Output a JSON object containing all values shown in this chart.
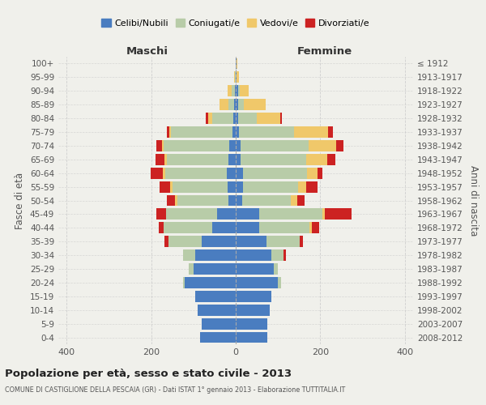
{
  "age_groups": [
    "0-4",
    "5-9",
    "10-14",
    "15-19",
    "20-24",
    "25-29",
    "30-34",
    "35-39",
    "40-44",
    "45-49",
    "50-54",
    "55-59",
    "60-64",
    "65-69",
    "70-74",
    "75-79",
    "80-84",
    "85-89",
    "90-94",
    "95-99",
    "100+"
  ],
  "birth_years": [
    "2008-2012",
    "2003-2007",
    "1998-2002",
    "1993-1997",
    "1988-1992",
    "1983-1987",
    "1978-1982",
    "1973-1977",
    "1968-1972",
    "1963-1967",
    "1958-1962",
    "1953-1957",
    "1948-1952",
    "1943-1947",
    "1938-1942",
    "1933-1937",
    "1928-1932",
    "1923-1927",
    "1918-1922",
    "1913-1917",
    "≤ 1912"
  ],
  "colors": {
    "celibi": "#4a7dc0",
    "coniugati": "#b8cca8",
    "vedovi": "#f0c86a",
    "divorziati": "#cc2222"
  },
  "males": {
    "celibi": [
      85,
      80,
      90,
      95,
      120,
      100,
      95,
      80,
      55,
      45,
      18,
      20,
      22,
      18,
      15,
      8,
      5,
      3,
      2,
      0,
      0
    ],
    "coniugati": [
      0,
      0,
      0,
      0,
      5,
      12,
      30,
      80,
      115,
      120,
      120,
      130,
      145,
      145,
      155,
      145,
      50,
      15,
      8,
      2,
      0
    ],
    "vedovi": [
      0,
      0,
      0,
      0,
      0,
      0,
      0,
      0,
      0,
      0,
      5,
      5,
      5,
      5,
      5,
      5,
      10,
      20,
      10,
      2,
      0
    ],
    "divorziati": [
      0,
      0,
      0,
      0,
      0,
      0,
      0,
      8,
      12,
      22,
      20,
      25,
      30,
      22,
      12,
      5,
      5,
      0,
      0,
      0,
      0
    ]
  },
  "females": {
    "celibi": [
      75,
      75,
      80,
      85,
      100,
      90,
      85,
      72,
      55,
      55,
      15,
      18,
      18,
      12,
      12,
      8,
      5,
      5,
      5,
      2,
      2
    ],
    "coniugati": [
      0,
      0,
      0,
      0,
      8,
      10,
      28,
      80,
      120,
      150,
      115,
      130,
      150,
      155,
      160,
      130,
      45,
      15,
      5,
      0,
      0
    ],
    "vedovi": [
      0,
      0,
      0,
      0,
      0,
      0,
      0,
      0,
      5,
      5,
      15,
      18,
      25,
      50,
      65,
      80,
      55,
      50,
      20,
      5,
      2
    ],
    "divorziati": [
      0,
      0,
      0,
      0,
      0,
      0,
      5,
      8,
      18,
      65,
      18,
      28,
      12,
      18,
      18,
      12,
      5,
      0,
      0,
      0,
      0
    ]
  },
  "xlim": 420,
  "title": "Popolazione per età, sesso e stato civile - 2013",
  "subtitle": "COMUNE DI CASTIGLIONE DELLA PESCAIA (GR) - Dati ISTAT 1° gennaio 2013 - Elaborazione TUTTITALIA.IT",
  "xlabel_left": "Maschi",
  "xlabel_right": "Femmine",
  "ylabel_left": "Fasce di età",
  "ylabel_right": "Anni di nascita",
  "legend_labels": [
    "Celibi/Nubili",
    "Coniugati/e",
    "Vedovi/e",
    "Divorziati/e"
  ],
  "bg_color": "#f0f0eb",
  "grid_color": "#cccccc"
}
